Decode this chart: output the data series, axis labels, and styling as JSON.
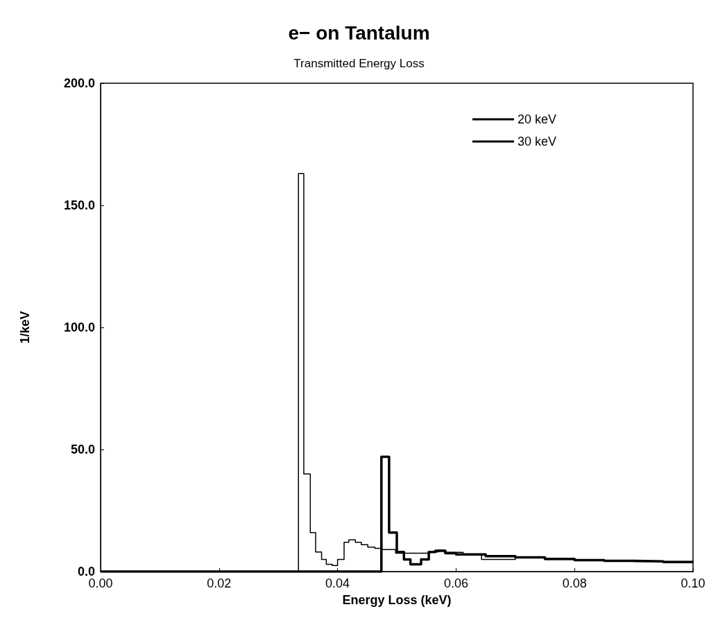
{
  "chart_data": {
    "type": "step",
    "title": "e− on Tantalum",
    "subtitle": "Transmitted Energy Loss",
    "xlabel": "Energy Loss (keV)",
    "ylabel": "1/keV",
    "xlim": [
      0,
      0.1
    ],
    "xticks": [
      {
        "value": 0,
        "label": "0.00"
      },
      {
        "value": 0.02,
        "label": "0.02"
      },
      {
        "value": 0.04,
        "label": "0.04"
      },
      {
        "value": 0.06,
        "label": "0.06"
      },
      {
        "value": 0.08,
        "label": "0.08"
      },
      {
        "value": 0.1,
        "label": "0.10"
      }
    ],
    "ylim": [
      0,
      200
    ],
    "yticks": [
      {
        "value": 0,
        "label": "0.0"
      },
      {
        "value": 50,
        "label": "50.0"
      },
      {
        "value": 100,
        "label": "100.0"
      },
      {
        "value": 150,
        "label": "150.0"
      },
      {
        "value": 200,
        "label": "200.0"
      }
    ],
    "grid": false,
    "legend": "top right",
    "line_style": "solid",
    "marker": "none",
    "series": [
      {
        "name": "20 keV",
        "color": "#000000",
        "x": [
          0,
          0.0474,
          0.0487,
          0.05,
          0.0512,
          0.0523,
          0.0541,
          0.0554,
          0.0565,
          0.0582,
          0.06,
          0.065,
          0.07,
          0.075,
          0.08,
          0.085,
          0.09,
          0.095,
          0.1
        ],
        "values": [
          0,
          47,
          16,
          8,
          5,
          3,
          5,
          8,
          8.5,
          7.5,
          7,
          6.3,
          5.8,
          5.2,
          4.7,
          4.4,
          4.2,
          3.9,
          3.7
        ]
      },
      {
        "name": "30 keV",
        "color": "#000000",
        "x": [
          0,
          0.0334,
          0.0343,
          0.0354,
          0.0363,
          0.0373,
          0.0381,
          0.0391,
          0.04,
          0.0411,
          0.0419,
          0.043,
          0.044,
          0.0451,
          0.0463,
          0.0475,
          0.0498,
          0.0556,
          0.057,
          0.058,
          0.0612,
          0.0643,
          0.07,
          0.075,
          0.08,
          0.09,
          0.1
        ],
        "values": [
          0,
          163,
          40,
          16,
          8,
          5,
          3,
          2.5,
          5,
          12,
          13,
          12,
          11,
          10,
          9.5,
          9,
          7.5,
          8,
          8.8,
          7.9,
          7,
          5,
          5.8,
          5,
          4.6,
          4.1,
          3.6
        ]
      }
    ]
  }
}
